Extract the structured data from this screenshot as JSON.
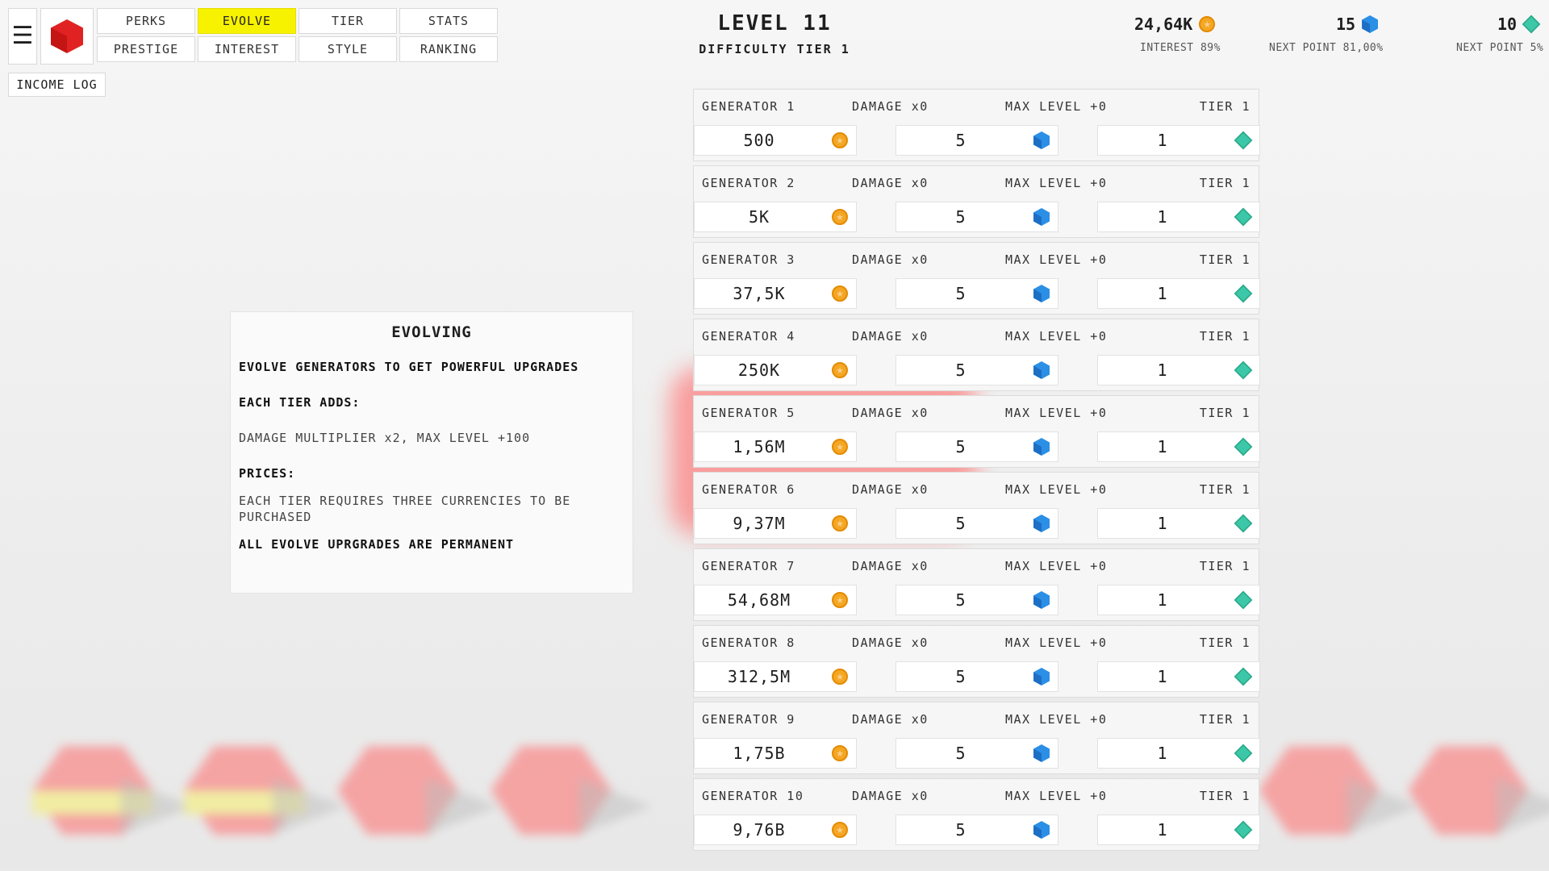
{
  "nav": {
    "tabs": [
      "PERKS",
      "EVOLVE",
      "TIER",
      "STATS",
      "PRESTIGE",
      "INTEREST",
      "STYLE",
      "RANKING"
    ],
    "active_tab": "EVOLVE",
    "income_log": "INCOME LOG",
    "menu_icon": "hamburger-menu-icon",
    "logo_icon": "red-cube-icon"
  },
  "header": {
    "level": "LEVEL 11",
    "difficulty": "DIFFICULTY TIER 1"
  },
  "currencies": {
    "coins": {
      "value": "24,64K",
      "sub": "INTEREST 89%",
      "icon": "coin-icon"
    },
    "gems": {
      "value": "15",
      "sub": "NEXT POINT 81,00%",
      "icon": "blue-gem-icon"
    },
    "diamonds": {
      "value": "10",
      "sub": "NEXT POINT 5%",
      "icon": "green-diamond-icon"
    }
  },
  "info": {
    "title": "EVOLVING",
    "line1": "EVOLVE GENERATORS TO GET POWERFUL UPGRADES",
    "line2": "EACH TIER ADDS:",
    "line3": "DAMAGE MULTIPLIER x2, MAX LEVEL +100",
    "line4": "PRICES:",
    "line5": "EACH TIER REQUIRES THREE CURRENCIES TO BE PURCHASED",
    "line6": "ALL EVOLVE UPRGRADES ARE PERMANENT"
  },
  "generators": [
    {
      "name": "GENERATOR 1",
      "damage": "DAMAGE x0",
      "max_level": "MAX LEVEL +0",
      "tier": "TIER 1",
      "coin_cost": "500",
      "gem_cost": "5",
      "diamond_cost": "1"
    },
    {
      "name": "GENERATOR 2",
      "damage": "DAMAGE x0",
      "max_level": "MAX LEVEL +0",
      "tier": "TIER 1",
      "coin_cost": "5K",
      "gem_cost": "5",
      "diamond_cost": "1"
    },
    {
      "name": "GENERATOR 3",
      "damage": "DAMAGE x0",
      "max_level": "MAX LEVEL +0",
      "tier": "TIER 1",
      "coin_cost": "37,5K",
      "gem_cost": "5",
      "diamond_cost": "1"
    },
    {
      "name": "GENERATOR 4",
      "damage": "DAMAGE x0",
      "max_level": "MAX LEVEL +0",
      "tier": "TIER 1",
      "coin_cost": "250K",
      "gem_cost": "5",
      "diamond_cost": "1"
    },
    {
      "name": "GENERATOR 5",
      "damage": "DAMAGE x0",
      "max_level": "MAX LEVEL +0",
      "tier": "TIER 1",
      "coin_cost": "1,56M",
      "gem_cost": "5",
      "diamond_cost": "1"
    },
    {
      "name": "GENERATOR 6",
      "damage": "DAMAGE x0",
      "max_level": "MAX LEVEL +0",
      "tier": "TIER 1",
      "coin_cost": "9,37M",
      "gem_cost": "5",
      "diamond_cost": "1"
    },
    {
      "name": "GENERATOR 7",
      "damage": "DAMAGE x0",
      "max_level": "MAX LEVEL +0",
      "tier": "TIER 1",
      "coin_cost": "54,68M",
      "gem_cost": "5",
      "diamond_cost": "1"
    },
    {
      "name": "GENERATOR 8",
      "damage": "DAMAGE x0",
      "max_level": "MAX LEVEL +0",
      "tier": "TIER 1",
      "coin_cost": "312,5M",
      "gem_cost": "5",
      "diamond_cost": "1"
    },
    {
      "name": "GENERATOR 9",
      "damage": "DAMAGE x0",
      "max_level": "MAX LEVEL +0",
      "tier": "TIER 1",
      "coin_cost": "1,75B",
      "gem_cost": "5",
      "diamond_cost": "1"
    },
    {
      "name": "GENERATOR 10",
      "damage": "DAMAGE x0",
      "max_level": "MAX LEVEL +0",
      "tier": "TIER 1",
      "coin_cost": "9,76B",
      "gem_cost": "5",
      "diamond_cost": "1"
    }
  ],
  "colors": {
    "active_tab": "#f7f200",
    "coin": "#f5a623",
    "gem": "#2b8fe6",
    "diamond": "#3cc8a8",
    "background_hex": "#ff6b6b"
  }
}
